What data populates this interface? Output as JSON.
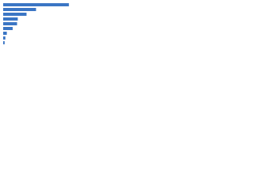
{
  "chart_data": {
    "type": "bar",
    "orientation": "horizontal",
    "categories": [
      null,
      null,
      null,
      null,
      null,
      null,
      null,
      null,
      null
    ],
    "values": [
      90,
      45,
      32,
      20,
      19,
      13,
      5,
      3,
      2
    ],
    "color": "#3a75c4",
    "xlim": [
      0,
      100
    ]
  }
}
